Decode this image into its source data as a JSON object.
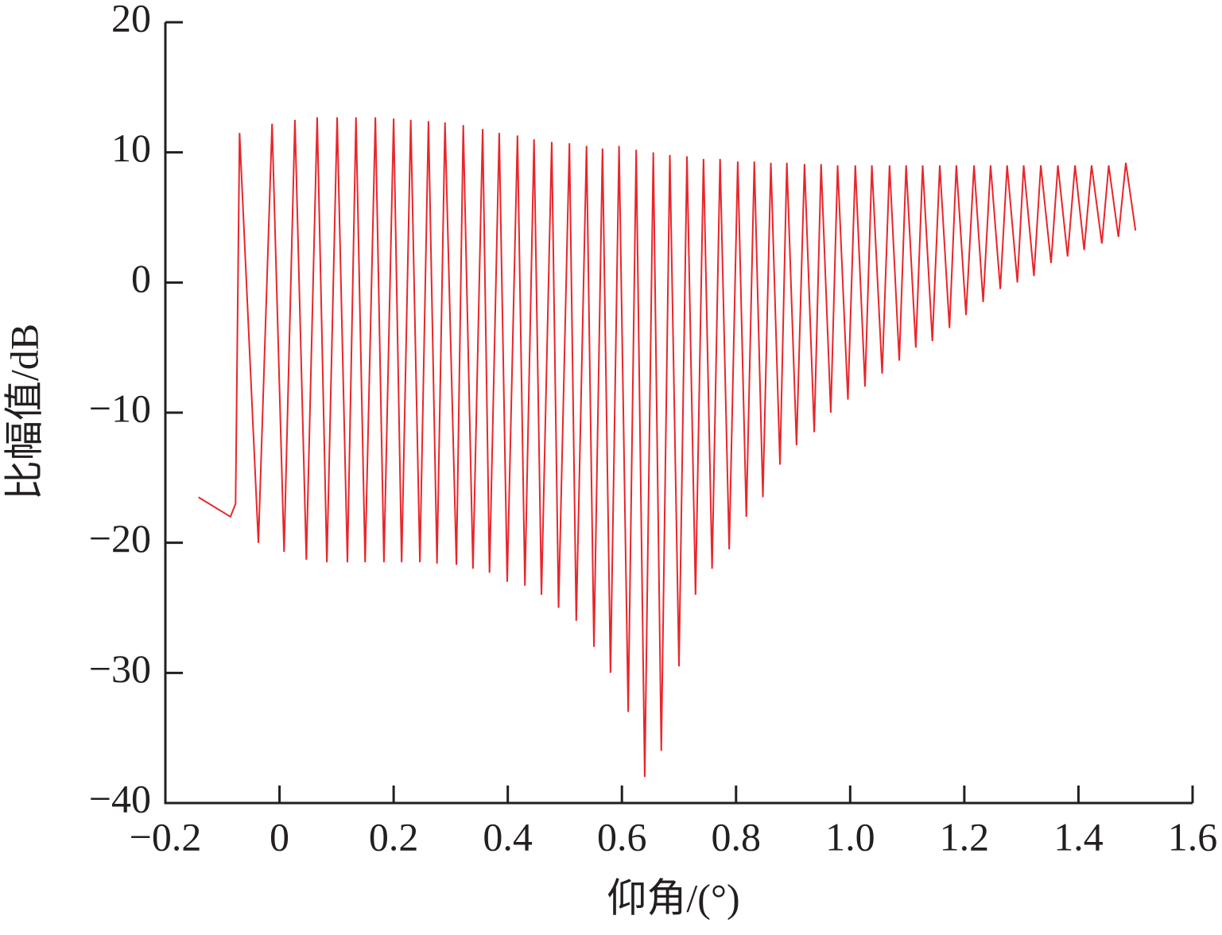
{
  "chart_data": {
    "type": "line",
    "xlabel": "仰角/(°)",
    "ylabel": "比幅值/dB",
    "x": [
      -0.142,
      -0.086,
      -0.077,
      -0.07,
      -0.037,
      -0.013,
      0.008,
      0.027,
      0.047,
      0.066,
      0.083,
      0.101,
      0.119,
      0.134,
      0.15,
      0.168,
      0.183,
      0.2,
      0.214,
      0.23,
      0.246,
      0.261,
      0.276,
      0.29,
      0.31,
      0.322,
      0.339,
      0.356,
      0.368,
      0.385,
      0.399,
      0.417,
      0.43,
      0.446,
      0.459,
      0.477,
      0.489,
      0.508,
      0.52,
      0.538,
      0.551,
      0.566,
      0.58,
      0.595,
      0.611,
      0.625,
      0.64,
      0.655,
      0.669,
      0.684,
      0.7,
      0.714,
      0.729,
      0.743,
      0.758,
      0.772,
      0.788,
      0.803,
      0.818,
      0.832,
      0.847,
      0.861,
      0.877,
      0.889,
      0.906,
      0.92,
      0.937,
      0.949,
      0.966,
      0.978,
      0.996,
      1.009,
      1.026,
      1.038,
      1.056,
      1.069,
      1.086,
      1.098,
      1.115,
      1.127,
      1.144,
      1.157,
      1.174,
      1.186,
      1.203,
      1.217,
      1.233,
      1.246,
      1.263,
      1.275,
      1.293,
      1.304,
      1.322,
      1.334,
      1.352,
      1.364,
      1.381,
      1.394,
      1.41,
      1.423,
      1.441,
      1.453,
      1.47,
      1.483,
      1.5
    ],
    "series": [
      {
        "color": "#e8262b",
        "values": [
          -16.5,
          -18,
          -17,
          11.5,
          -20,
          12.2,
          -20.7,
          12.5,
          -21.3,
          12.7,
          -21.5,
          12.7,
          -21.5,
          12.7,
          -21.5,
          12.7,
          -21.5,
          12.6,
          -21.5,
          12.5,
          -21.5,
          12.4,
          -21.6,
          12.3,
          -21.7,
          12.1,
          -22,
          11.8,
          -22.3,
          11.5,
          -23,
          11.3,
          -23.3,
          11.0,
          -24,
          10.8,
          -25,
          10.7,
          -26,
          10.5,
          -28,
          10.3,
          -30,
          10.5,
          -33,
          10.2,
          -38,
          10.0,
          -36,
          9.8,
          -29.5,
          9.7,
          -24,
          9.5,
          -22,
          9.5,
          -20.5,
          9.3,
          -18,
          9.3,
          -16.5,
          9.2,
          -14,
          9.2,
          -12.5,
          9.1,
          -11.5,
          9.1,
          -10,
          9.0,
          -9,
          9.0,
          -8,
          9.0,
          -7,
          9.0,
          -6,
          9.0,
          -5,
          9.0,
          -4.5,
          9.0,
          -3.5,
          9.0,
          -2.5,
          9.0,
          -1.5,
          9.0,
          -0.5,
          9.0,
          0,
          9.0,
          0.5,
          9.0,
          1.5,
          9.0,
          2,
          9.0,
          2.5,
          9.0,
          3,
          9.0,
          3.5,
          9.2,
          4
        ]
      }
    ],
    "xlim": [
      -0.2,
      1.6
    ],
    "xticks": [
      {
        "value": -0.2,
        "label": "−0.2"
      },
      0,
      0.2,
      0.4,
      0.6,
      0.8,
      {
        "value": 1,
        "label": "1.0"
      },
      1.2,
      1.4,
      1.6
    ],
    "ylim": [
      -40,
      20
    ],
    "yticks": [
      {
        "value": -40,
        "label": "−40"
      },
      {
        "value": -30,
        "label": "−30"
      },
      {
        "value": -20,
        "label": "−20"
      },
      {
        "value": -10,
        "label": "−10"
      },
      0,
      10,
      20
    ],
    "grid": false
  }
}
